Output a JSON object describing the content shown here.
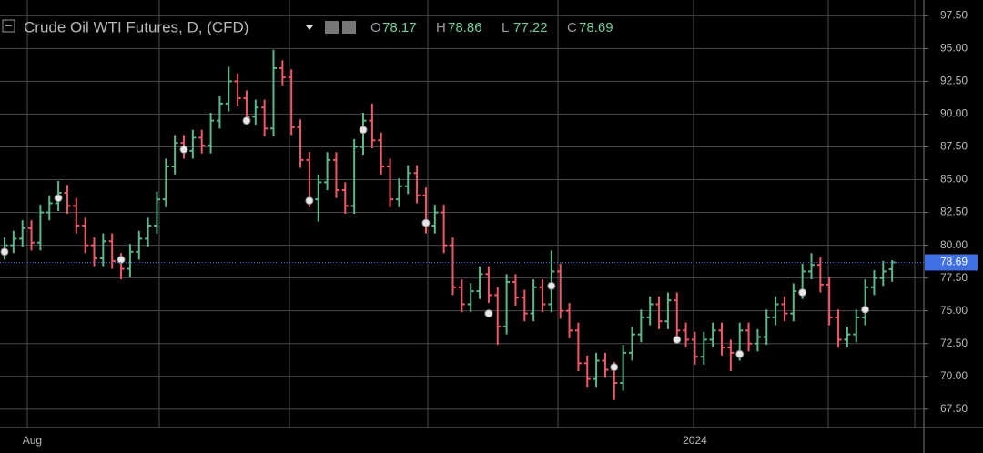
{
  "chart_data": {
    "type": "ohlc",
    "title": "Crude Oil WTI Futures, D, (CFD)",
    "ohlc_labels": [
      "O",
      "H",
      "L",
      "C"
    ],
    "categories": [
      null,
      null,
      "Aug",
      null,
      null,
      null,
      null,
      null,
      null,
      null,
      null,
      null,
      null,
      null,
      null,
      null,
      null,
      null,
      null,
      null,
      null,
      null,
      null,
      null,
      null,
      null,
      null,
      null,
      null,
      null,
      null,
      null,
      null,
      null,
      null,
      null,
      null,
      null,
      null,
      null,
      null,
      null,
      null,
      null,
      null,
      null,
      null,
      null,
      null,
      null,
      null,
      null,
      null,
      null,
      null,
      null,
      null,
      null,
      null,
      null,
      null,
      null,
      null,
      null,
      null,
      null,
      null,
      null,
      null,
      null,
      null,
      null,
      null,
      null,
      null,
      null,
      null,
      "2024",
      null,
      null,
      null,
      null,
      null,
      null,
      null,
      null,
      null,
      null,
      null,
      null,
      null,
      null,
      null,
      null,
      null,
      null,
      null,
      null,
      null,
      null
    ],
    "open": [
      79.5,
      80,
      80.5,
      81.3,
      80.2,
      82.5,
      83.2,
      84,
      83,
      81.5,
      80,
      79,
      80.3,
      78.8,
      78.2,
      79.5,
      80.5,
      81.5,
      83.5,
      86,
      87.8,
      87.2,
      88.2,
      87.6,
      89.5,
      90.8,
      92.5,
      91.2,
      89.8,
      90.5,
      88.9,
      93.5,
      92.8,
      89,
      86.5,
      83.5,
      84.8,
      86.5,
      84.2,
      83,
      87.5,
      89.5,
      88,
      86,
      83.5,
      84.5,
      85.5,
      83.8,
      81.5,
      82.5,
      80,
      76.8,
      75.5,
      76.5,
      77.8,
      76.2,
      73.8,
      77.2,
      76,
      74.8,
      76.8,
      75.5,
      78,
      75,
      73.5,
      71,
      69.8,
      71.2,
      70.5,
      69.5,
      71.8,
      73.2,
      74.5,
      75.5,
      74.2,
      75.8,
      73.5,
      72.8,
      71.5,
      72.8,
      73.5,
      72.2,
      71.8,
      73.5,
      72.5,
      73,
      74.5,
      75.5,
      74.8,
      76.5,
      78,
      78.5,
      77,
      74.5,
      72.8,
      73.2,
      74.5,
      76.8,
      77.5,
      78.17
    ],
    "high": [
      80.6,
      81.1,
      81.9,
      81.9,
      83.1,
      83.8,
      84.9,
      84.6,
      83.6,
      82.1,
      80.6,
      80.9,
      80.9,
      79.4,
      80.1,
      81.1,
      82.1,
      84.1,
      86.6,
      88.4,
      88.4,
      88.8,
      88.8,
      90.1,
      91.4,
      93.6,
      93.1,
      91.8,
      91.1,
      91.1,
      94.9,
      94.1,
      93.4,
      89.6,
      87.1,
      85.4,
      87.1,
      87.1,
      84.8,
      88.1,
      90.1,
      90.8,
      88.6,
      86.6,
      85.1,
      86.1,
      86.1,
      84.4,
      83.1,
      83.1,
      80.6,
      77.4,
      77.1,
      78.4,
      78.4,
      76.8,
      77.8,
      77.8,
      76.6,
      77.4,
      77.4,
      79.6,
      78.6,
      75.6,
      74.1,
      71.6,
      71.8,
      71.8,
      71.1,
      72.4,
      73.8,
      75.1,
      76.1,
      76.1,
      76.4,
      76.4,
      74.1,
      73.4,
      73.4,
      74.1,
      74.1,
      72.8,
      74.1,
      74.1,
      73.6,
      75.1,
      76.1,
      76.1,
      77.1,
      78.6,
      79.4,
      79.1,
      77.6,
      75.1,
      73.8,
      75.1,
      77.4,
      78.1,
      78.8,
      78.86
    ],
    "low": [
      78.9,
      79.4,
      79.9,
      79.6,
      79.6,
      81.9,
      82.6,
      82.4,
      80.9,
      79.4,
      78.4,
      78.4,
      78.2,
      77.4,
      77.6,
      78.9,
      79.9,
      80.9,
      82.9,
      85.4,
      86.6,
      86.6,
      87,
      87,
      88.9,
      90.2,
      90.6,
      89.2,
      89.2,
      88.3,
      88.3,
      92.2,
      88.4,
      85.9,
      82.9,
      81.8,
      84.2,
      83.6,
      82.4,
      82.4,
      86.9,
      87.4,
      85.4,
      82.9,
      82.9,
      83.9,
      83.2,
      80.9,
      80.9,
      79.4,
      76.2,
      74.9,
      74.9,
      75.9,
      75.6,
      72.4,
      73.2,
      75.4,
      74.2,
      74.2,
      74.9,
      74.9,
      74.4,
      72.9,
      70.4,
      69.2,
      69.2,
      69.9,
      68.2,
      68.9,
      71.2,
      72.6,
      73.9,
      73.6,
      73.6,
      72.9,
      72.2,
      70.9,
      70.9,
      72.2,
      71.6,
      70.4,
      71.2,
      71.9,
      71.9,
      72.4,
      73.9,
      74.2,
      74.2,
      75.9,
      77.4,
      76.4,
      73.9,
      72.2,
      72.2,
      72.6,
      73.9,
      76.2,
      76.9,
      77.22
    ],
    "close": [
      80,
      80.5,
      81.3,
      80.2,
      82.5,
      83.2,
      84,
      83,
      81.5,
      80,
      79,
      80.3,
      78.8,
      78.2,
      79.5,
      80.5,
      81.5,
      83.5,
      86,
      87.8,
      87.2,
      88.2,
      87.6,
      89.5,
      90.8,
      92.5,
      91.2,
      89.8,
      90.5,
      88.9,
      93.5,
      92.8,
      89,
      86.5,
      83.5,
      84.8,
      86.5,
      84.2,
      83,
      87.5,
      89.5,
      88,
      86,
      83.5,
      84.5,
      85.5,
      83.8,
      81.5,
      82.5,
      80,
      76.8,
      75.5,
      76.5,
      77.8,
      76.2,
      73.8,
      77.2,
      76,
      74.8,
      76.8,
      75.5,
      78,
      75,
      73.5,
      71,
      69.8,
      71.2,
      70.5,
      69.5,
      71.8,
      73.2,
      74.5,
      75.5,
      74.2,
      75.8,
      73.5,
      72.8,
      71.5,
      72.8,
      73.5,
      72.2,
      71.8,
      73.5,
      72.5,
      73,
      74.5,
      75.5,
      74.8,
      76.5,
      78,
      78.5,
      77,
      74.5,
      72.8,
      73.2,
      74.5,
      76.8,
      77.5,
      78,
      78.69
    ],
    "up_color": "#5cb88a",
    "down_color": "#f0586a",
    "markers": {
      "index": [
        0,
        6,
        13,
        20,
        27,
        34,
        40,
        47,
        54,
        61,
        68,
        75,
        82,
        89,
        96
      ],
      "values": [
        79.5,
        83.6,
        78.9,
        87.3,
        89.5,
        83.4,
        88.8,
        81.7,
        74.8,
        76.9,
        70.7,
        72.8,
        71.7,
        76.4,
        75.1
      ]
    },
    "ylim": [
      66.1,
      98.7
    ],
    "yticks": [
      {
        "value": 67.5,
        "label": "67.50"
      },
      {
        "value": 70,
        "label": "70.00"
      },
      {
        "value": 72.5,
        "label": "72.50"
      },
      {
        "value": 75,
        "label": "75.00"
      },
      {
        "value": 77.5,
        "label": "77.50"
      },
      {
        "value": 80,
        "label": "80.00"
      },
      {
        "value": 82.5,
        "label": "82.50"
      },
      {
        "value": 85,
        "label": "85.00"
      },
      {
        "value": 87.5,
        "label": "87.50"
      },
      {
        "value": 90,
        "label": "90.00"
      },
      {
        "value": 92.5,
        "label": "92.50"
      },
      {
        "value": 95,
        "label": "95.00"
      },
      {
        "value": 97.5,
        "label": "97.50"
      }
    ],
    "grid": true
  }
}
